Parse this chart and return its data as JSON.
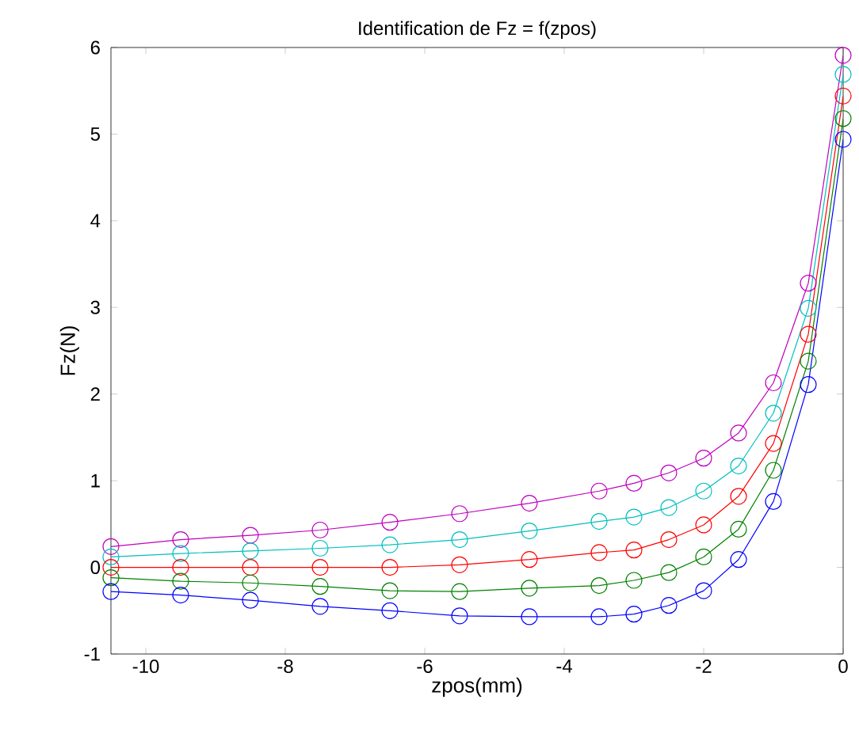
{
  "chart_data": {
    "type": "line",
    "title": "Identification de Fz = f(zpos)",
    "xlabel": "zpos(mm)",
    "ylabel": "Fz(N)",
    "x": [
      -10.5,
      -9.5,
      -8.5,
      -7.5,
      -6.5,
      -5.5,
      -4.5,
      -3.5,
      -3,
      -2.5,
      -2,
      -1.5,
      -1,
      -0.5,
      0
    ],
    "series": [
      {
        "color": "#bf00bf",
        "values": [
          0.24,
          0.32,
          0.37,
          0.43,
          0.52,
          0.62,
          0.74,
          0.88,
          0.97,
          1.09,
          1.26,
          1.55,
          2.13,
          3.28,
          5.91
        ]
      },
      {
        "color": "#00bfbf",
        "values": [
          0.12,
          0.16,
          0.19,
          0.22,
          0.26,
          0.32,
          0.42,
          0.53,
          0.58,
          0.69,
          0.88,
          1.17,
          1.78,
          2.99,
          5.69
        ]
      },
      {
        "color": "#ff0000",
        "values": [
          0.0,
          0.0,
          0.0,
          0.0,
          0.0,
          0.03,
          0.09,
          0.17,
          0.2,
          0.32,
          0.49,
          0.82,
          1.43,
          2.69,
          5.44
        ]
      },
      {
        "color": "#008000",
        "values": [
          -0.12,
          -0.16,
          -0.18,
          -0.22,
          -0.27,
          -0.28,
          -0.24,
          -0.21,
          -0.15,
          -0.06,
          0.12,
          0.44,
          1.12,
          2.38,
          5.18
        ]
      },
      {
        "color": "#0000ff",
        "values": [
          -0.28,
          -0.32,
          -0.38,
          -0.45,
          -0.5,
          -0.56,
          -0.57,
          -0.57,
          -0.54,
          -0.44,
          -0.27,
          0.09,
          0.76,
          2.11,
          4.94
        ]
      }
    ],
    "xlim": [
      -10.5,
      0
    ],
    "ylim": [
      -1,
      6
    ],
    "xticks": [
      -10,
      -8,
      -6,
      -4,
      -2,
      0
    ],
    "yticks": [
      -1,
      0,
      1,
      2,
      3,
      4,
      5,
      6
    ],
    "grid": false,
    "marker": "circle",
    "line_style": "solid"
  }
}
